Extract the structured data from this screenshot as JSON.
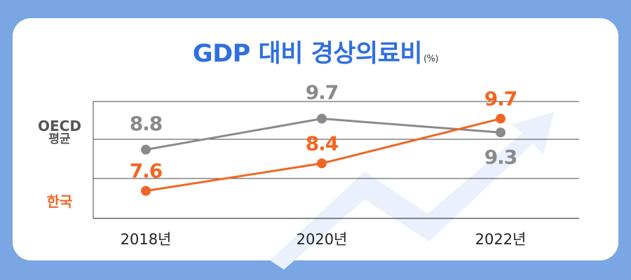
{
  "chart_data": {
    "type": "line",
    "title": "GDP 대비 경상의료비",
    "unit": "(%)",
    "categories": [
      "2018년",
      "2020년",
      "2022년"
    ],
    "series": [
      {
        "name": "OECD 평균",
        "values": [
          8.8,
          9.7,
          9.3
        ],
        "color": "#8a8a8a"
      },
      {
        "name": "한국",
        "values": [
          7.6,
          8.4,
          9.7
        ],
        "color": "#f26522"
      }
    ],
    "grid": true,
    "ylim": [
      6.8,
      10.2
    ]
  },
  "colors": {
    "background": "#7aa6e3",
    "card": "#ffffff",
    "title": "#2f6fe0",
    "arrow": "#e9effb"
  }
}
